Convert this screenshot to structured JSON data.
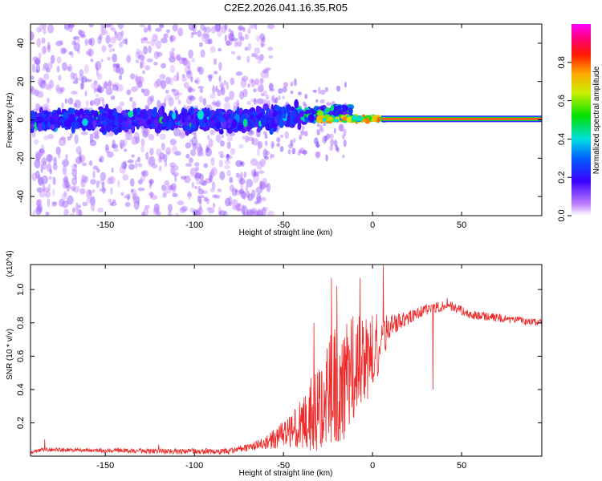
{
  "title": "C2E2.2026.041.16.35.R05",
  "colors": {
    "snr_line": "#ee2a2a",
    "spectral_scatter": "#7a1fe0",
    "axis": "#000000"
  },
  "chart_data": [
    {
      "type": "heatmap",
      "name": "spectrogram",
      "xlabel": "Height of straight line (km)",
      "ylabel": "Frequency (Hz)",
      "xlim": [
        -192,
        95
      ],
      "ylim": [
        -50,
        50
      ],
      "xticks": [
        -150,
        -100,
        -50,
        0,
        50
      ],
      "xtick_labels": [
        "-150",
        "-100",
        "-50",
        "0",
        "50"
      ],
      "yticks": [
        -40,
        -20,
        0,
        20,
        40
      ],
      "ytick_labels": [
        "-40",
        "-20",
        "0",
        "20",
        "40"
      ],
      "grid": false,
      "colorbar": {
        "label": "Normalized spectral amplitude",
        "range": [
          0,
          1
        ],
        "ticks": [
          0,
          0.2,
          0.4,
          0.6,
          0.8
        ],
        "tick_labels": [
          "0.0",
          "0.2",
          "0.4",
          "0.6",
          "0.8"
        ],
        "colormap": "rainbow (white-violet-blue-cyan-green-yellow-red-magenta)"
      },
      "features": [
        {
          "description": "sparse low-amplitude scatter",
          "x_range": [
            -192,
            -60
          ],
          "freq_range": [
            -50,
            50
          ],
          "amplitude": 0.05
        },
        {
          "description": "noisy band",
          "x_range": [
            -192,
            -25
          ],
          "freq_range": [
            -8,
            8
          ],
          "amplitude": 0.2
        },
        {
          "description": "strong continuous line",
          "x_range": [
            5,
            95
          ],
          "freq": 0.5,
          "amplitude": 1.0
        }
      ]
    },
    {
      "type": "line",
      "name": "snr",
      "xlabel": "Height of straight line (km)",
      "ylabel": "SNR (10 * v/v)",
      "scale_label": "(x10^4)",
      "xlim": [
        -192,
        95
      ],
      "ylim": [
        0,
        1.15
      ],
      "xticks": [
        -150,
        -100,
        -50,
        0,
        50
      ],
      "xtick_labels": [
        "-150",
        "-100",
        "-50",
        "0",
        "50"
      ],
      "yticks": [
        0.2,
        0.4,
        0.6,
        0.8,
        1.0
      ],
      "ytick_labels": [
        "0.2",
        "0.4",
        "0.6",
        "0.8",
        "1.0"
      ],
      "grid": false,
      "series": [
        {
          "name": "SNR",
          "envelope_x": [
            -192,
            -185,
            -120,
            -80,
            -70,
            -60,
            -50,
            -40,
            -30,
            -22,
            -15,
            -10,
            -5,
            0,
            5,
            10,
            20,
            30,
            35,
            40,
            45,
            55,
            70,
            95
          ],
          "envelope_y": [
            0.02,
            0.04,
            0.03,
            0.03,
            0.05,
            0.08,
            0.13,
            0.2,
            0.3,
            0.42,
            0.45,
            0.55,
            0.58,
            0.62,
            0.7,
            0.78,
            0.83,
            0.88,
            0.89,
            0.9,
            0.9,
            0.85,
            0.83,
            0.8
          ],
          "noise_x": [
            -192,
            -70,
            -60,
            -50,
            -40,
            -30,
            -22,
            -15,
            -10,
            -5,
            0,
            5,
            10,
            20,
            40,
            95
          ],
          "noise_amp": [
            0.01,
            0.02,
            0.04,
            0.08,
            0.15,
            0.28,
            0.35,
            0.35,
            0.3,
            0.27,
            0.24,
            0.15,
            0.07,
            0.04,
            0.03,
            0.02
          ],
          "peaks": [
            {
              "x": -184,
              "y": 0.1
            },
            {
              "x": -120,
              "y": 0.07
            },
            {
              "x": -33,
              "y": 0.8
            },
            {
              "x": -23,
              "y": 1.07
            },
            {
              "x": -20,
              "y": 1.02
            },
            {
              "x": -7,
              "y": 1.07
            },
            {
              "x": 6,
              "y": 1.15
            },
            {
              "x": 34,
              "y": 0.4
            },
            {
              "x": 42,
              "y": 0.95
            }
          ]
        }
      ]
    }
  ]
}
